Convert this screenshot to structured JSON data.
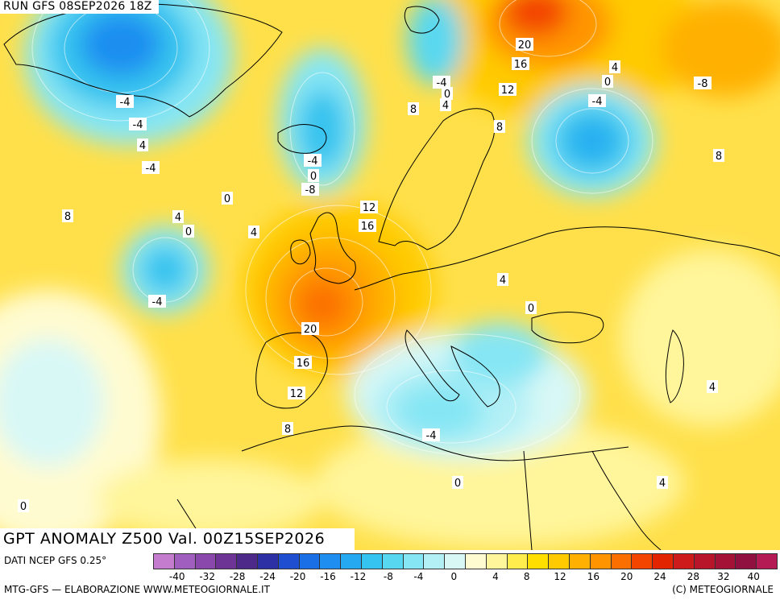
{
  "header": {
    "run_label": "RUN GFS 08SEP2026 18Z"
  },
  "title": "GPT ANOMALY Z500 Val. 00Z15SEP2026",
  "footer": {
    "source": "DATI NCEP GFS 0.25°",
    "credit_left": "MTG-GFS — ELABORAZIONE WWW.METEOGIORNALE.IT",
    "credit_right": "(C) METEOGIORNALE"
  },
  "legend": {
    "colors": [
      "#c47ccf",
      "#a05fbf",
      "#8a48ad",
      "#6e3495",
      "#4d2a8a",
      "#2d2fa4",
      "#1f4fd0",
      "#1a6fe6",
      "#1e8ef0",
      "#25aaf2",
      "#35c3ef",
      "#58d8f0",
      "#86e6f4",
      "#b2f0f6",
      "#d8f8f6",
      "#fffbd0",
      "#fff59a",
      "#ffed4d",
      "#ffdf00",
      "#ffca00",
      "#ffb000",
      "#ff9400",
      "#fb6f00",
      "#f34500",
      "#e32400",
      "#cd1b1c",
      "#b8152a",
      "#a41236",
      "#901040",
      "#b41a54"
    ],
    "tick_labels": [
      "-40",
      "-32",
      "-28",
      "-24",
      "-20",
      "-16",
      "-12",
      "-8",
      "-4",
      "0",
      "4",
      "8",
      "12",
      "16",
      "20",
      "24",
      "28",
      "32",
      "40"
    ]
  },
  "contour_labels": [
    "20",
    "16",
    "4",
    "0",
    "12",
    "-4",
    "-4",
    "0",
    "4",
    "8",
    "-4",
    "8",
    "-8",
    "-4",
    "-4",
    "0",
    "4",
    "-8",
    "-4",
    "0",
    "8",
    "12",
    "16",
    "4",
    "8",
    "4",
    "0",
    "4",
    "-4",
    "20",
    "16",
    "12",
    "4",
    "0",
    "8",
    "-4",
    "4",
    "0",
    "0",
    "4"
  ]
}
